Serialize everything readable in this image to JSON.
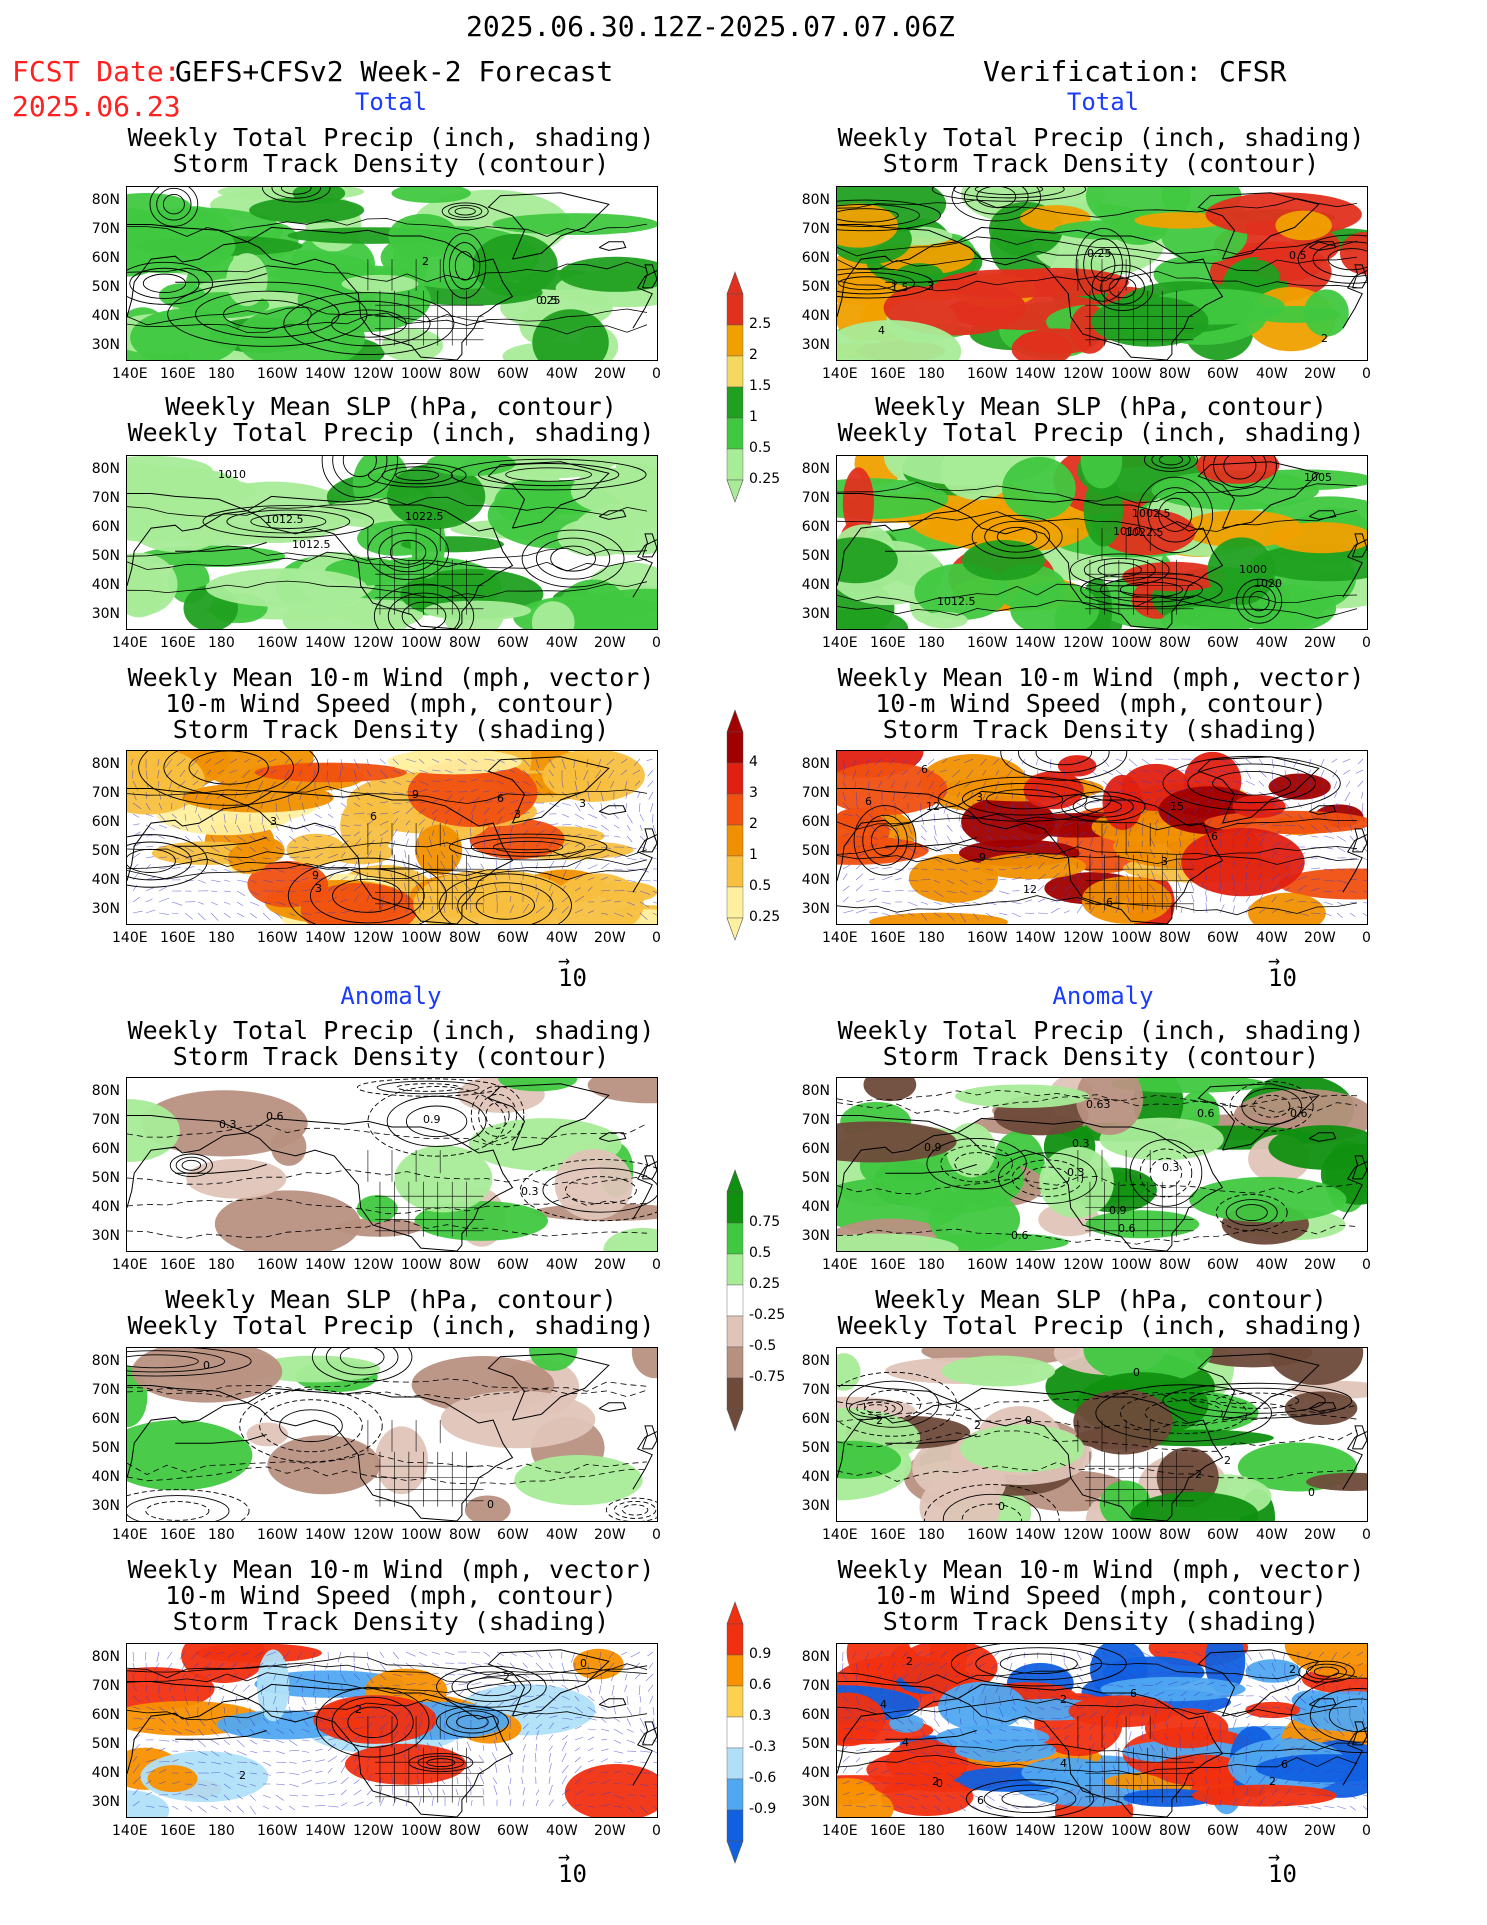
{
  "header": {
    "valid_period": "2025.06.30.12Z-2025.07.07.06Z",
    "fcst_date_label": "FCST Date:",
    "forecast_name": "GEFS+CFSv2 Week-2 Forecast",
    "fcst_date": "2025.06.23",
    "verification_label": "Verification: CFSR"
  },
  "sections": {
    "total": "Total",
    "anomaly": "Anomaly"
  },
  "panel_titles": {
    "precip_storm": [
      "Weekly Total Precip (inch, shading)",
      "Storm Track Density (contour)"
    ],
    "slp_precip": [
      "Weekly Mean SLP (hPa, contour)",
      "Weekly Total Precip (inch, shading)"
    ],
    "wind_storm": [
      "Weekly Mean 10-m Wind (mph, vector)",
      "10-m Wind Speed (mph, contour)",
      "Storm Track Density (shading)"
    ]
  },
  "axes": {
    "lat_labels": [
      "80N",
      "70N",
      "60N",
      "50N",
      "40N",
      "30N"
    ],
    "lon_labels": [
      "140E",
      "160E",
      "180",
      "160W",
      "140W",
      "120W",
      "100W",
      "80W",
      "60W",
      "40W",
      "20W",
      "0"
    ]
  },
  "vector_reference": "10",
  "colorbars": {
    "precip_total": {
      "labels": [
        "2.5",
        "2",
        "1.5",
        "1",
        "0.5",
        "0.25"
      ],
      "colors": [
        "#e0301e",
        "#f0a000",
        "#f5d860",
        "#20a020",
        "#40c840",
        "#a8ec98"
      ]
    },
    "storm_total": {
      "labels": [
        "4",
        "3",
        "2",
        "1",
        "0.5",
        "0.25"
      ],
      "colors": [
        "#a00000",
        "#e02010",
        "#f05010",
        "#f09000",
        "#f8c040",
        "#fff0a0"
      ]
    },
    "precip_anom": {
      "labels": [
        "0.75",
        "0.5",
        "0.25",
        "-0.25",
        "-0.5",
        "-0.75"
      ],
      "colors": [
        "#109010",
        "#40c840",
        "#a8ec98",
        "#ffffff",
        "#e0c4b8",
        "#b89080",
        "#6e4a3a"
      ]
    },
    "storm_anom": {
      "labels": [
        "0.9",
        "0.6",
        "0.3",
        "-0.3",
        "-0.6",
        "-0.9"
      ],
      "colors": [
        "#f03010",
        "#f89000",
        "#fcd050",
        "#ffffff",
        "#b0e0f8",
        "#50a8f0",
        "#1060e0"
      ]
    }
  },
  "contour_labels": {
    "fcst_total_precip": [
      "0.5",
      "0.25",
      "2"
    ],
    "verif_total_precip": [
      "1.5",
      "0.25",
      "0.5",
      "3",
      "4",
      "2"
    ],
    "fcst_total_slp": [
      "1012.5",
      "1010",
      "1012.5",
      "1022.5"
    ],
    "verif_total_slp": [
      "1010",
      "1000",
      "1002.5",
      "1005",
      "1020",
      "1012.5",
      "1022.5"
    ],
    "fcst_total_wind": [
      "3",
      "6",
      "3",
      "9",
      "6",
      "3",
      "3",
      "9"
    ],
    "verif_total_wind": [
      "6",
      "6",
      "3",
      "6",
      "3",
      "12",
      "12",
      "9",
      "15",
      "6"
    ],
    "fcst_anom_precip": [
      "0.6",
      "0.3",
      "0.9",
      "0.3"
    ],
    "verif_anom_precip": [
      "0.63",
      "0.3",
      "0.6",
      "0.6",
      "0.3",
      "0.9",
      "0.6",
      "0.3",
      "0.9",
      "0.6"
    ],
    "fcst_anom_slp": [
      "0",
      "0"
    ],
    "verif_anom_slp": [
      "0",
      "2",
      "0",
      "0",
      "2",
      "2",
      "0",
      "2"
    ],
    "fcst_anom_wind": [
      "2",
      "2",
      "0",
      "2"
    ],
    "verif_anom_wind": [
      "4",
      "2",
      "6",
      "2",
      "4",
      "6",
      "2",
      "2",
      "4",
      "2",
      "6",
      "0"
    ]
  }
}
